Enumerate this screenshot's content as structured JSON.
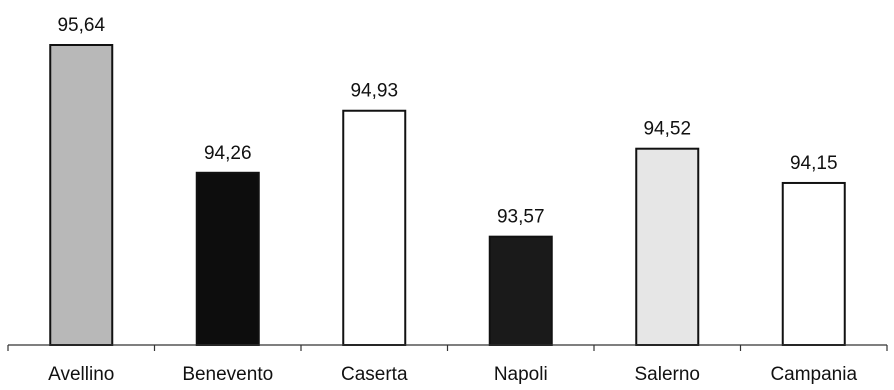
{
  "chart_data": {
    "type": "bar",
    "categories": [
      "Avellino",
      "Benevento",
      "Caserta",
      "Napoli",
      "Salerno",
      "Campania"
    ],
    "values": [
      "95,64",
      "94,26",
      "94,93",
      "93,57",
      "94,52",
      "94,15"
    ],
    "numeric_values": [
      95.64,
      94.26,
      94.93,
      93.57,
      94.52,
      94.15
    ],
    "fills": [
      "#b8b8b8",
      "#0d0d0d",
      "#ffffff",
      "#1a1a1a",
      "#e6e6e6",
      "#ffffff"
    ],
    "edge_color": "#111111",
    "title": "",
    "xlabel": "",
    "ylabel": "",
    "ylim": [
      92.4,
      95.64
    ],
    "grid": false,
    "legend": "none"
  }
}
